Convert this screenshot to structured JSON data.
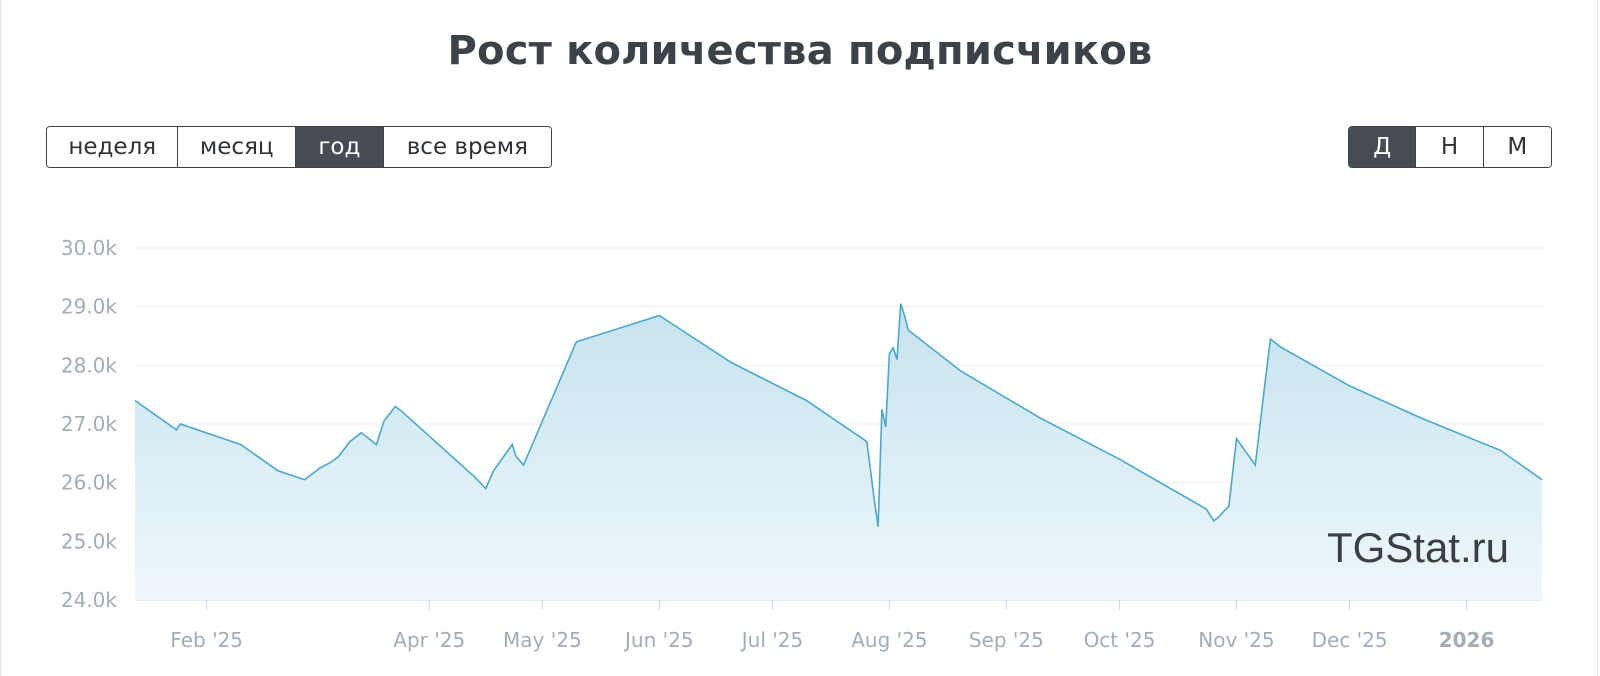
{
  "title": "Рост количества подписчиков",
  "period_buttons": [
    {
      "label": "неделя",
      "active": false
    },
    {
      "label": "месяц",
      "active": false
    },
    {
      "label": "год",
      "active": true
    },
    {
      "label": "все время",
      "active": false
    }
  ],
  "granularity_buttons": [
    {
      "label": "Д",
      "active": true
    },
    {
      "label": "Н",
      "active": false
    },
    {
      "label": "М",
      "active": false
    }
  ],
  "watermark": "TGStat.ru",
  "colors": {
    "line": "#4aa8cf",
    "fill_top": "#c6e3ef",
    "fill_bottom": "#eef7fb",
    "grid": "#eeeeee",
    "axis": "#ccd6eb"
  },
  "chart_data": {
    "type": "area",
    "title": "Рост количества подписчиков",
    "xlabel": "",
    "ylabel": "",
    "ylim": [
      24000,
      30000
    ],
    "y_ticks": [
      "24.0k",
      "25.0k",
      "26.0k",
      "27.0k",
      "28.0k",
      "29.0k",
      "30.0k"
    ],
    "x_ticks": [
      "Feb '25",
      "Apr '25",
      "May '25",
      "Jun '25",
      "Jul '25",
      "Aug '25",
      "Sep '25",
      "Oct '25",
      "Nov '25",
      "Dec '25",
      "2026"
    ],
    "grid": true,
    "legend": "none",
    "series": [
      {
        "x": [
          "2025-01-13",
          "2025-01-24",
          "2025-01-25",
          "2025-02-10",
          "2025-02-20",
          "2025-02-27",
          "2025-03-01",
          "2025-03-03",
          "2025-03-06",
          "2025-03-08",
          "2025-03-11",
          "2025-03-14",
          "2025-03-18",
          "2025-03-20",
          "2025-03-23",
          "2025-03-25",
          "2025-04-13",
          "2025-04-16",
          "2025-04-18",
          "2025-04-23",
          "2025-04-24",
          "2025-04-26",
          "2025-05-10",
          "2025-06-01",
          "2025-06-20",
          "2025-07-10",
          "2025-07-26",
          "2025-07-27",
          "2025-07-28",
          "2025-07-29",
          "2025-07-30",
          "2025-07-31",
          "2025-08-01",
          "2025-08-02",
          "2025-08-03",
          "2025-08-04",
          "2025-08-05",
          "2025-08-06",
          "2025-08-20",
          "2025-09-10",
          "2025-10-01",
          "2025-10-24",
          "2025-10-26",
          "2025-10-27",
          "2025-10-30",
          "2025-11-01",
          "2025-11-06",
          "2025-11-08",
          "2025-11-10",
          "2025-11-13",
          "2025-12-01",
          "2025-12-20",
          "2026-01-10",
          "2026-01-21"
        ],
        "values": [
          27400,
          26900,
          27000,
          26650,
          26200,
          26050,
          26150,
          26250,
          26350,
          26450,
          26700,
          26850,
          26650,
          27050,
          27300,
          27200,
          26100,
          25900,
          26200,
          26650,
          26450,
          26300,
          28400,
          28850,
          28050,
          27400,
          26700,
          26200,
          25700,
          25250,
          27250,
          26950,
          28200,
          28300,
          28100,
          29050,
          28850,
          28600,
          27900,
          27100,
          26400,
          25550,
          25350,
          25400,
          25600,
          26750,
          26300,
          27400,
          28450,
          28300,
          27650,
          27100,
          26550,
          26050
        ]
      }
    ]
  }
}
